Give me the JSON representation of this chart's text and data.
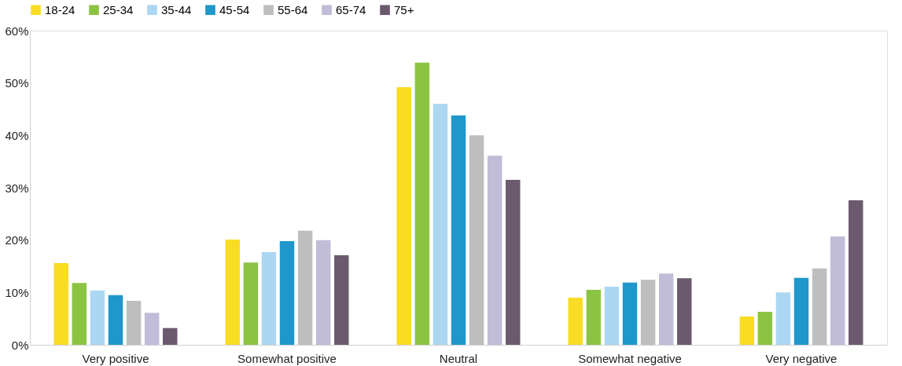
{
  "chart_data": {
    "type": "bar",
    "categories": [
      "Very positive",
      "Somewhat positive",
      "Neutral",
      "Somewhat negative",
      "Very negative"
    ],
    "series": [
      {
        "name": "18-24",
        "color": "#f9dc24",
        "values": [
          15.6,
          20.1,
          49.2,
          9.0,
          5.4
        ]
      },
      {
        "name": "25-34",
        "color": "#8bc443",
        "values": [
          11.8,
          15.7,
          53.9,
          10.5,
          6.3
        ]
      },
      {
        "name": "35-44",
        "color": "#acd7f2",
        "values": [
          10.4,
          17.7,
          46.0,
          11.1,
          10.0
        ]
      },
      {
        "name": "45-54",
        "color": "#1f97cb",
        "values": [
          9.5,
          19.8,
          43.8,
          11.9,
          12.8
        ]
      },
      {
        "name": "55-64",
        "color": "#bebebe",
        "values": [
          8.4,
          21.8,
          40.0,
          12.4,
          14.6
        ]
      },
      {
        "name": "65-74",
        "color": "#c1bcd7",
        "values": [
          6.1,
          20.0,
          36.1,
          13.6,
          20.7
        ]
      },
      {
        "name": "75+",
        "color": "#6b5a6e",
        "values": [
          3.2,
          17.1,
          31.5,
          12.7,
          27.6
        ]
      }
    ],
    "ylim": [
      0,
      60
    ],
    "yticks": [
      {
        "value": 0,
        "label": "0%"
      },
      {
        "value": 10,
        "label": "10%"
      },
      {
        "value": 20,
        "label": "20%"
      },
      {
        "value": 30,
        "label": "30%"
      },
      {
        "value": 40,
        "label": "40%"
      },
      {
        "value": 50,
        "label": "50%"
      },
      {
        "value": 60,
        "label": "60%"
      }
    ],
    "grid": false,
    "legend": "top"
  }
}
